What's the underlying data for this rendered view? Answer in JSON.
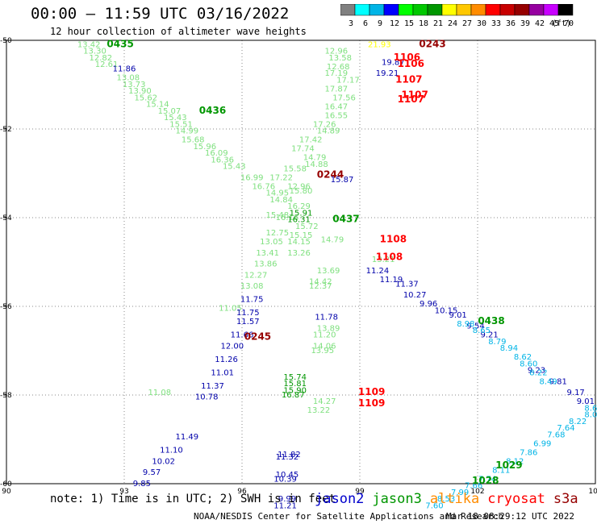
{
  "header": {
    "title": "00:00 – 11:59 UTC 03/16/2022",
    "subtitle": "12 hour collection of altimeter wave heights"
  },
  "colorbar": {
    "unit_label": "(ft)",
    "bins": [
      {
        "label": "3",
        "color": "#808080"
      },
      {
        "label": "6",
        "color": "#00ffff"
      },
      {
        "label": "9",
        "color": "#00b4e6"
      },
      {
        "label": "12",
        "color": "#0000ff"
      },
      {
        "label": "15",
        "color": "#00ff00"
      },
      {
        "label": "18",
        "color": "#00c800"
      },
      {
        "label": "21",
        "color": "#009600"
      },
      {
        "label": "24",
        "color": "#ffff00"
      },
      {
        "label": "27",
        "color": "#ffc800"
      },
      {
        "label": "30",
        "color": "#ff8c00"
      },
      {
        "label": "33",
        "color": "#ff0000"
      },
      {
        "label": "36",
        "color": "#c80000"
      },
      {
        "label": "39",
        "color": "#960000"
      },
      {
        "label": "42",
        "color": "#9600a0"
      },
      {
        "label": "45",
        "color": "#c800ff"
      },
      {
        "label": "70",
        "color": "#000000"
      }
    ]
  },
  "footer": {
    "note": "note: 1) Time is in UTC; 2) SWH is in feet",
    "satellites": [
      {
        "name": "jason2",
        "color": "#0000cc"
      },
      {
        "name": "jason3",
        "color": "#009600"
      },
      {
        "name": "altika",
        "color": "#ff8c00"
      },
      {
        "name": "cryosat",
        "color": "#ff0000"
      },
      {
        "name": "s3a",
        "color": "#960000"
      }
    ],
    "credit": "NOAA/NESDIS Center for Satellite Applications and Research",
    "timestamp": "Mar 18 08:29:12 UTC 2022"
  },
  "chart_data": {
    "type": "scatter",
    "xlim": [
      90,
      105
    ],
    "ylim": [
      -60,
      -50
    ],
    "x_ticks": [
      "90",
      "93",
      "96",
      "99",
      "102",
      "105"
    ],
    "y_ticks": [
      "-50",
      "-52",
      "-54",
      "-56",
      "-58",
      "-60"
    ],
    "grid": true,
    "colors": {
      "light_green": "#7fe07f",
      "green": "#009600",
      "dark_blue": "#0000aa",
      "cyan": "#00b4e6",
      "red": "#ff0000",
      "dark_red": "#960000",
      "yellow": "#e6e600"
    },
    "tracks": [
      {
        "id": "track-a",
        "color": "#7fe07f",
        "points": [
          {
            "x": 92.1,
            "y": -50.15,
            "label": "13.42"
          },
          {
            "x": 92.25,
            "y": -50.3,
            "label": "13.30"
          },
          {
            "x": 92.4,
            "y": -50.45,
            "label": "12.82"
          },
          {
            "x": 92.55,
            "y": -50.6,
            "label": "12.61"
          },
          {
            "x": 93.1,
            "y": -50.9,
            "label": "13.08"
          },
          {
            "x": 93.25,
            "y": -51.05,
            "label": "13.73"
          },
          {
            "x": 93.4,
            "y": -51.2,
            "label": "13.90"
          },
          {
            "x": 93.55,
            "y": -51.35,
            "label": "15.62"
          },
          {
            "x": 93.85,
            "y": -51.5,
            "label": "15.14"
          },
          {
            "x": 94.15,
            "y": -51.65,
            "label": "15.07"
          },
          {
            "x": 94.3,
            "y": -51.8,
            "label": "15.43"
          },
          {
            "x": 94.45,
            "y": -51.95,
            "label": "15.51"
          },
          {
            "x": 94.6,
            "y": -52.1,
            "label": "14.99"
          },
          {
            "x": 94.75,
            "y": -52.3,
            "label": "15.68"
          },
          {
            "x": 95.05,
            "y": -52.45,
            "label": "15.96"
          },
          {
            "x": 95.35,
            "y": -52.6,
            "label": "16.09"
          },
          {
            "x": 95.5,
            "y": -52.75,
            "label": "16.36"
          },
          {
            "x": 95.8,
            "y": -52.9,
            "label": "15.43"
          },
          {
            "x": 96.25,
            "y": -53.15,
            "label": "16.99"
          },
          {
            "x": 96.55,
            "y": -53.35,
            "label": "16.76"
          },
          {
            "x": 96.9,
            "y": -53.5,
            "label": "14.95"
          },
          {
            "x": 97.0,
            "y": -53.65,
            "label": "14.84"
          },
          {
            "x": 97.45,
            "y": -53.8,
            "label": "16.29"
          },
          {
            "x": 97.15,
            "y": -54.05,
            "label": "16.16"
          },
          {
            "x": 97.65,
            "y": -54.25,
            "label": "15.72"
          },
          {
            "x": 97.5,
            "y": -54.45,
            "label": "15.15"
          },
          {
            "x": 97.45,
            "y": -54.6,
            "label": "14.15"
          },
          {
            "x": 97.45,
            "y": -54.85,
            "label": "13.26"
          }
        ]
      },
      {
        "id": "track-b",
        "color": "#7fe07f",
        "points": [
          {
            "x": 98.4,
            "y": -50.3,
            "label": "12.96"
          },
          {
            "x": 98.5,
            "y": -50.45,
            "label": "13.58"
          },
          {
            "x": 98.45,
            "y": -50.65,
            "label": "12.68"
          },
          {
            "x": 98.4,
            "y": -50.8,
            "label": "17.19"
          },
          {
            "x": 98.7,
            "y": -50.95,
            "label": "17.17"
          },
          {
            "x": 98.4,
            "y": -51.15,
            "label": "17.87"
          },
          {
            "x": 98.6,
            "y": -51.35,
            "label": "17.56"
          },
          {
            "x": 98.4,
            "y": -51.55,
            "label": "16.47"
          },
          {
            "x": 98.4,
            "y": -51.75,
            "label": "16.55"
          },
          {
            "x": 98.1,
            "y": -51.95,
            "label": "17.26"
          },
          {
            "x": 98.2,
            "y": -52.1,
            "label": "14.89"
          },
          {
            "x": 97.75,
            "y": -52.3,
            "label": "17.42"
          },
          {
            "x": 97.55,
            "y": -52.5,
            "label": "17.74"
          },
          {
            "x": 97.85,
            "y": -52.7,
            "label": "14.79"
          },
          {
            "x": 97.9,
            "y": -52.85,
            "label": "14.88"
          },
          {
            "x": 97.35,
            "y": -52.95,
            "label": "15.58"
          },
          {
            "x": 97.0,
            "y": -53.15,
            "label": "17.22"
          },
          {
            "x": 97.45,
            "y": -53.35,
            "label": "12.96"
          },
          {
            "x": 97.5,
            "y": -53.45,
            "label": "15.80"
          },
          {
            "x": 96.9,
            "y": -54.0,
            "label": "15.48"
          },
          {
            "x": 96.9,
            "y": -54.4,
            "label": "12.75"
          },
          {
            "x": 96.75,
            "y": -54.6,
            "label": "13.05"
          },
          {
            "x": 96.65,
            "y": -54.85,
            "label": "13.41"
          },
          {
            "x": 96.6,
            "y": -55.1,
            "label": "13.86"
          },
          {
            "x": 96.35,
            "y": -55.35,
            "label": "12.27"
          },
          {
            "x": 96.25,
            "y": -55.6,
            "label": "13.08"
          },
          {
            "x": 95.7,
            "y": -56.1,
            "label": "11.05"
          },
          {
            "x": 93.9,
            "y": -58.0,
            "label": "11.08"
          }
        ]
      },
      {
        "id": "track-c",
        "color": "#7fe07f",
        "points": [
          {
            "x": 98.2,
            "y": -55.25,
            "label": "13.69"
          },
          {
            "x": 98.0,
            "y": -55.5,
            "label": "14.42"
          },
          {
            "x": 98.0,
            "y": -55.6,
            "label": "12.37"
          },
          {
            "x": 98.2,
            "y": -56.55,
            "label": "13.89"
          },
          {
            "x": 98.1,
            "y": -56.7,
            "label": "11.20"
          },
          {
            "x": 98.1,
            "y": -56.95,
            "label": "14.06"
          },
          {
            "x": 98.05,
            "y": -57.05,
            "label": "13.95"
          },
          {
            "x": 98.1,
            "y": -58.2,
            "label": "14.27"
          },
          {
            "x": 97.95,
            "y": -58.4,
            "label": "13.22"
          },
          {
            "x": 98.3,
            "y": -54.55,
            "label": "14.79"
          },
          {
            "x": 99.6,
            "y": -55.0,
            "label": "13.21"
          }
        ]
      },
      {
        "id": "track-d",
        "color": "#009600",
        "points": [
          {
            "x": 97.5,
            "y": -53.95,
            "label": "15.91"
          },
          {
            "x": 97.45,
            "y": -54.1,
            "label": "16.31"
          },
          {
            "x": 97.35,
            "y": -57.65,
            "label": "15.74"
          },
          {
            "x": 97.35,
            "y": -57.8,
            "label": "15.81"
          },
          {
            "x": 97.35,
            "y": -57.95,
            "label": "15.90"
          },
          {
            "x": 97.3,
            "y": -58.05,
            "label": "16.87"
          }
        ]
      },
      {
        "id": "track-e",
        "color": "#0000aa",
        "points": [
          {
            "x": 93.0,
            "y": -50.7,
            "label": "11.86"
          },
          {
            "x": 99.85,
            "y": -50.55,
            "label": "19.87"
          },
          {
            "x": 99.7,
            "y": -50.8,
            "label": "19.21"
          },
          {
            "x": 98.55,
            "y": -53.2,
            "label": "15.87"
          },
          {
            "x": 96.25,
            "y": -55.9,
            "label": "11.75"
          },
          {
            "x": 96.15,
            "y": -56.2,
            "label": "11.75"
          },
          {
            "x": 96.15,
            "y": -56.4,
            "label": "11.57"
          },
          {
            "x": 96.0,
            "y": -56.7,
            "label": "11.66"
          },
          {
            "x": 95.75,
            "y": -56.95,
            "label": "12.00"
          },
          {
            "x": 95.6,
            "y": -57.25,
            "label": "11.26"
          },
          {
            "x": 95.5,
            "y": -57.55,
            "label": "11.01"
          },
          {
            "x": 95.25,
            "y": -57.85,
            "label": "11.37"
          },
          {
            "x": 95.1,
            "y": -58.1,
            "label": "10.78"
          },
          {
            "x": 94.6,
            "y": -59.0,
            "label": "11.49"
          },
          {
            "x": 94.2,
            "y": -59.3,
            "label": "11.10"
          },
          {
            "x": 94.0,
            "y": -59.55,
            "label": "10.02"
          },
          {
            "x": 93.7,
            "y": -59.8,
            "label": "9.57"
          },
          {
            "x": 93.45,
            "y": -60.05,
            "label": "9.85"
          },
          {
            "x": 99.45,
            "y": -55.25,
            "label": "11.24"
          },
          {
            "x": 99.8,
            "y": -55.45,
            "label": "11.19"
          },
          {
            "x": 100.2,
            "y": -55.55,
            "label": "11.37"
          },
          {
            "x": 100.4,
            "y": -55.8,
            "label": "10.27"
          },
          {
            "x": 100.75,
            "y": -56.0,
            "label": "9.96"
          },
          {
            "x": 101.2,
            "y": -56.15,
            "label": "10.15"
          },
          {
            "x": 101.5,
            "y": -56.25,
            "label": "9.01"
          },
          {
            "x": 101.95,
            "y": -56.5,
            "label": "9.54"
          },
          {
            "x": 102.3,
            "y": -56.7,
            "label": "9.21"
          },
          {
            "x": 103.5,
            "y": -57.5,
            "label": "9.23"
          },
          {
            "x": 104.05,
            "y": -57.75,
            "label": "9.81"
          },
          {
            "x": 104.5,
            "y": -58.0,
            "label": "9.17"
          },
          {
            "x": 104.75,
            "y": -58.2,
            "label": "9.01"
          },
          {
            "x": 98.15,
            "y": -56.3,
            "label": "11.78"
          },
          {
            "x": 97.2,
            "y": -59.4,
            "label": "11.82"
          },
          {
            "x": 97.15,
            "y": -59.45,
            "label": "11.32"
          },
          {
            "x": 97.15,
            "y": -59.85,
            "label": "10.45"
          },
          {
            "x": 97.1,
            "y": -59.95,
            "label": "10.39"
          },
          {
            "x": 97.15,
            "y": -60.4,
            "label": "9.99"
          },
          {
            "x": 97.1,
            "y": -60.55,
            "label": "11.21"
          }
        ]
      },
      {
        "id": "track-f",
        "color": "#00b4e6",
        "points": [
          {
            "x": 101.7,
            "y": -56.45,
            "label": "8.98"
          },
          {
            "x": 102.1,
            "y": -56.6,
            "label": "8.65"
          },
          {
            "x": 102.5,
            "y": -56.85,
            "label": "8.79"
          },
          {
            "x": 102.8,
            "y": -57.0,
            "label": "8.94"
          },
          {
            "x": 103.15,
            "y": -57.2,
            "label": "8.62"
          },
          {
            "x": 103.3,
            "y": -57.35,
            "label": "8.60"
          },
          {
            "x": 103.55,
            "y": -57.55,
            "label": "8.22"
          },
          {
            "x": 103.8,
            "y": -57.75,
            "label": "8.49"
          },
          {
            "x": 104.95,
            "y": -58.35,
            "label": "8.66"
          },
          {
            "x": 104.95,
            "y": -58.5,
            "label": "8.06"
          },
          {
            "x": 104.55,
            "y": -58.65,
            "label": "8.22"
          },
          {
            "x": 104.25,
            "y": -58.8,
            "label": "7.64"
          },
          {
            "x": 104.0,
            "y": -58.95,
            "label": "7.68"
          },
          {
            "x": 103.65,
            "y": -59.15,
            "label": "6.99"
          },
          {
            "x": 103.3,
            "y": -59.35,
            "label": "7.86"
          },
          {
            "x": 102.95,
            "y": -59.55,
            "label": "8.12"
          },
          {
            "x": 102.6,
            "y": -59.75,
            "label": "8.11"
          },
          {
            "x": 102.25,
            "y": -59.95,
            "label": "7.74"
          },
          {
            "x": 101.9,
            "y": -60.1,
            "label": "7.66"
          },
          {
            "x": 101.55,
            "y": -60.25,
            "label": "7.99"
          },
          {
            "x": 101.2,
            "y": -60.4,
            "label": "8.53"
          },
          {
            "x": 100.9,
            "y": -60.55,
            "label": "7.60"
          }
        ]
      },
      {
        "id": "track-g",
        "color": "#ffff00",
        "points": [
          {
            "x": 99.5,
            "y": -50.15,
            "label": "21.93"
          }
        ]
      },
      {
        "id": "track-h",
        "color": "#960000",
        "points": [
          {
            "x": 100.85,
            "y": -50.15,
            "label": "0243"
          },
          {
            "x": 98.25,
            "y": -53.1,
            "label": "0244"
          },
          {
            "x": 96.4,
            "y": -56.75,
            "label": "0245"
          }
        ]
      },
      {
        "id": "track-i",
        "color": "#ff0000",
        "points": [
          {
            "x": 100.2,
            "y": -50.45,
            "label": "1106"
          },
          {
            "x": 100.3,
            "y": -50.6,
            "label": "1106"
          },
          {
            "x": 100.25,
            "y": -50.95,
            "label": "1107"
          },
          {
            "x": 100.4,
            "y": -51.3,
            "label": "1107"
          },
          {
            "x": 100.3,
            "y": -51.4,
            "label": "1107"
          },
          {
            "x": 99.85,
            "y": -54.55,
            "label": "1108"
          },
          {
            "x": 99.75,
            "y": -54.95,
            "label": "1108"
          },
          {
            "x": 99.3,
            "y": -58.0,
            "label": "1109"
          },
          {
            "x": 99.3,
            "y": -58.25,
            "label": "1109"
          }
        ]
      },
      {
        "id": "track-j",
        "color": "#009600",
        "points": [
          {
            "x": 92.9,
            "y": -50.15,
            "label": "0435"
          },
          {
            "x": 95.25,
            "y": -51.65,
            "label": "0436"
          },
          {
            "x": 98.65,
            "y": -54.1,
            "label": "0437"
          },
          {
            "x": 102.35,
            "y": -56.4,
            "label": "0438"
          },
          {
            "x": 102.8,
            "y": -59.65,
            "label": "1029"
          },
          {
            "x": 102.2,
            "y": -60.0,
            "label": "1028"
          }
        ]
      }
    ]
  }
}
